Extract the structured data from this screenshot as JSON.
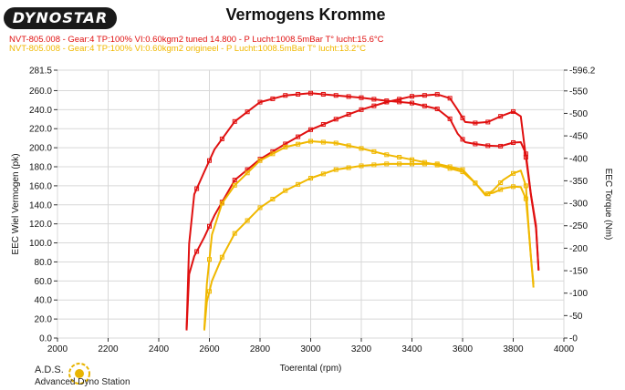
{
  "brand": {
    "logo_text": "DYNOSTAR"
  },
  "title": "Vermogens Kromme",
  "legend": [
    {
      "text": "NVT-805.008 - Gear:4 TP:100% VI:0.60kgm2 tuned 14.800  - P Lucht:1008.5mBar T° lucht:15.6°C",
      "color": "#e01010"
    },
    {
      "text": "NVT-805.008 - Gear:4 TP:100% VI:0.60kgm2 origineel  - P Lucht:1008.5mBar T° lucht:13.2°C",
      "color": "#f0b800"
    }
  ],
  "footer": {
    "name": "A.D.S.",
    "subtitle": "Advanced Dyno Station"
  },
  "chart_data": {
    "type": "line",
    "xlabel": "Toerental (rpm)",
    "ylabel": "EEC Wiel Vermogen (pk)",
    "y2label": "EEC Torque (Nm)",
    "xlim": [
      2000,
      4000
    ],
    "ylim": [
      0,
      281.5
    ],
    "y2lim": [
      0,
      596.2
    ],
    "xticks": [
      "2000",
      "2200",
      "2400",
      "2600",
      "2800",
      "3000",
      "3200",
      "3400",
      "3600",
      "3800",
      "4000"
    ],
    "yticks": [
      "0.0",
      "20.0",
      "40.0",
      "60.0",
      "80.0",
      "100.0",
      "120.0",
      "140.0",
      "160.0",
      "180.0",
      "200.0",
      "220.0",
      "240.0",
      "260.0",
      "281.5"
    ],
    "y2ticks": [
      "0",
      "50",
      "100",
      "150",
      "200",
      "250",
      "300",
      "350",
      "400",
      "450",
      "500",
      "550",
      "596.2"
    ],
    "grid": true,
    "series": [
      {
        "name": "tuned power",
        "color": "#e01010",
        "axis": "left",
        "x": [
          2510,
          2520,
          2540,
          2580,
          2620,
          2700,
          2800,
          2900,
          3000,
          3100,
          3200,
          3300,
          3400,
          3500,
          3550,
          3580,
          3610,
          3650,
          3700,
          3750,
          3800,
          3830,
          3850,
          3870,
          3890,
          3900
        ],
        "y": [
          8,
          67,
          86,
          106,
          129,
          166,
          188,
          204,
          219,
          230,
          240,
          248,
          254,
          256,
          252,
          240,
          227,
          226,
          227,
          233,
          238,
          233,
          190,
          150,
          115,
          72
        ]
      },
      {
        "name": "tuned torque",
        "color": "#e01010",
        "axis": "right",
        "x": [
          2510,
          2520,
          2540,
          2580,
          2620,
          2700,
          2800,
          2900,
          3000,
          3100,
          3200,
          3300,
          3400,
          3500,
          3550,
          3580,
          3610,
          3650,
          3700,
          3750,
          3800,
          3830,
          3850,
          3870,
          3890,
          3900
        ],
        "y": [
          20,
          210,
          320,
          370,
          420,
          482,
          525,
          540,
          545,
          540,
          535,
          528,
          523,
          510,
          488,
          455,
          436,
          432,
          428,
          427,
          435,
          436,
          410,
          320,
          250,
          150
        ]
      },
      {
        "name": "origineel power",
        "color": "#f0b800",
        "axis": "left",
        "x": [
          2580,
          2590,
          2610,
          2650,
          2700,
          2800,
          2900,
          3000,
          3100,
          3200,
          3300,
          3400,
          3500,
          3600,
          3650,
          3690,
          3720,
          3760,
          3800,
          3830,
          3850,
          3860,
          3870,
          3880
        ],
        "y": [
          8,
          38,
          60,
          85,
          110,
          137,
          155,
          168,
          177,
          181,
          183,
          183,
          183,
          177,
          163,
          150,
          155,
          166,
          173,
          176,
          160,
          120,
          85,
          53
        ]
      },
      {
        "name": "origineel torque",
        "color": "#f0b800",
        "axis": "right",
        "x": [
          2580,
          2590,
          2610,
          2650,
          2700,
          2800,
          2900,
          3000,
          3100,
          3200,
          3300,
          3400,
          3500,
          3600,
          3650,
          3690,
          3720,
          3760,
          3800,
          3830,
          3850,
          3860,
          3870,
          3880
        ],
        "y": [
          20,
          120,
          230,
          300,
          340,
          395,
          425,
          438,
          434,
          422,
          408,
          397,
          385,
          370,
          345,
          320,
          323,
          333,
          337,
          336,
          310,
          250,
          180,
          120
        ]
      }
    ]
  }
}
